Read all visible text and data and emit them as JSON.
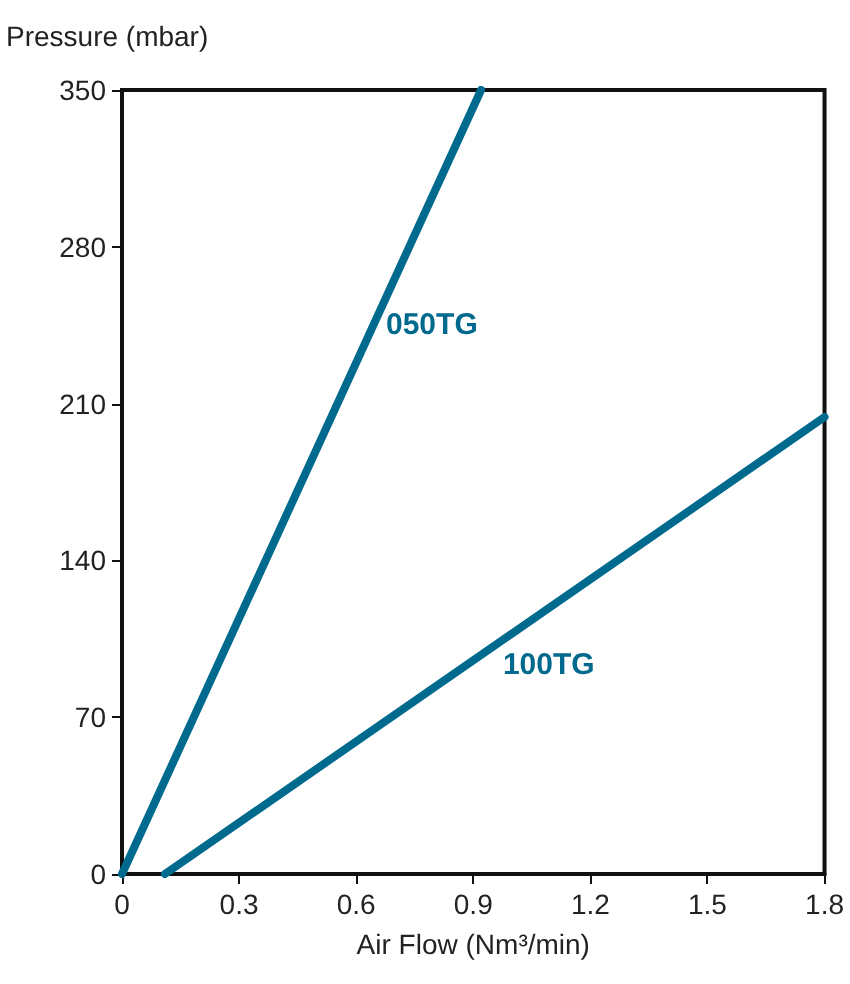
{
  "chart_data": {
    "type": "line",
    "xlabel": "Air Flow (Nm³/min)",
    "ylabel": "Pressure (mbar)",
    "series": [
      {
        "name": "050TG",
        "color": "#006a8e",
        "x": [
          0,
          0.92
        ],
        "values": [
          0,
          350
        ]
      },
      {
        "name": "100TG",
        "color": "#006a8e",
        "x": [
          0.11,
          1.8
        ],
        "values": [
          0,
          204
        ]
      }
    ],
    "xlim": [
      0,
      1.8
    ],
    "xticks": [
      0,
      0.3,
      0.6,
      0.9,
      1.2,
      1.5,
      1.8
    ],
    "ylim": [
      0,
      350
    ],
    "yticks": [
      0,
      70,
      140,
      210,
      280,
      350
    ],
    "grid": false,
    "legend": false,
    "marker": "none",
    "line_style": "solid"
  }
}
